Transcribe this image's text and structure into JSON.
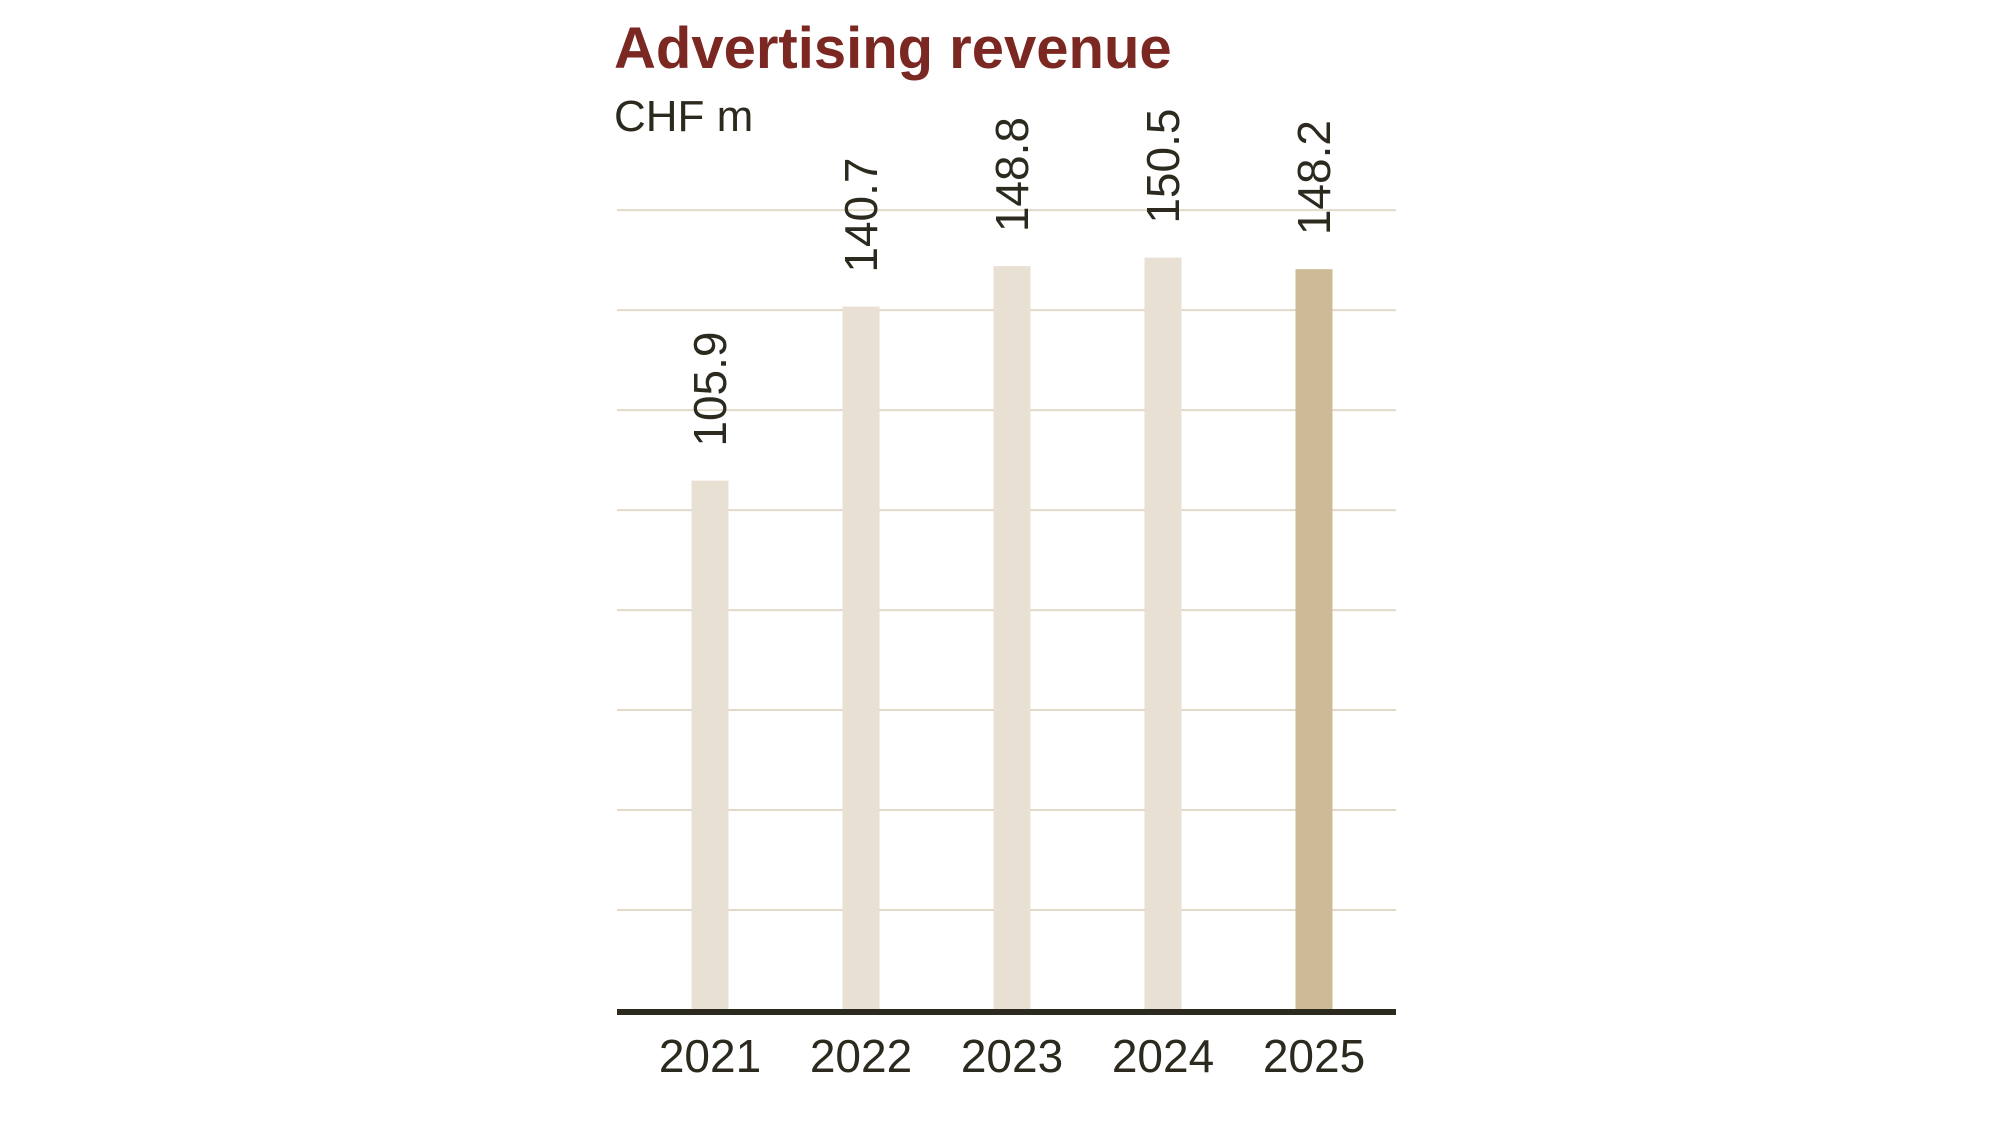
{
  "chart_data": {
    "type": "bar",
    "title": "Advertising revenue",
    "subtitle": "CHF m",
    "categories": [
      "2021",
      "2022",
      "2023",
      "2024",
      "2025"
    ],
    "values": [
      105.9,
      140.7,
      148.8,
      150.5,
      148.2
    ],
    "value_labels": [
      "105.9",
      "140.7",
      "148.8",
      "150.5",
      "148.2"
    ],
    "ylim": [
      0,
      160
    ],
    "grid": true,
    "gridline_step": 20,
    "legend": "none",
    "colors": {
      "bar": "#e8e0d3",
      "bar_highlight": "#cdbb97",
      "grid": "#e3d9c9",
      "axis": "#2c2a1f",
      "text": "#2c2a1f",
      "title": "#7b2722"
    },
    "highlight_index": 4
  }
}
